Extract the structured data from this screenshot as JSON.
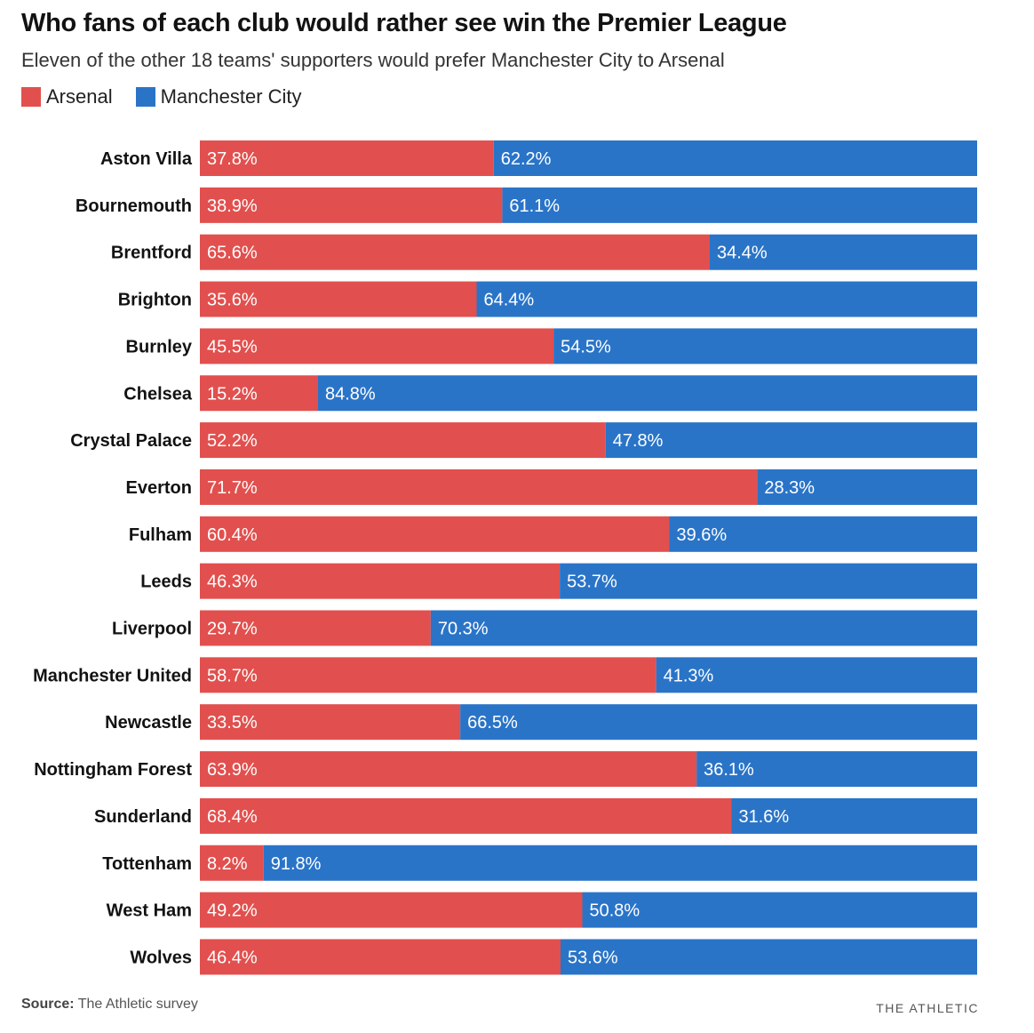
{
  "chart_data": {
    "type": "bar",
    "stacked": true,
    "orientation": "horizontal",
    "title": "Who fans of each club would rather see win the Premier League",
    "subtitle": "Eleven of the other 18 teams' supporters would prefer Manchester City to Arsenal",
    "categories": [
      "Aston Villa",
      "Bournemouth",
      "Brentford",
      "Brighton",
      "Burnley",
      "Chelsea",
      "Crystal Palace",
      "Everton",
      "Fulham",
      "Leeds",
      "Liverpool",
      "Manchester United",
      "Newcastle",
      "Nottingham Forest",
      "Sunderland",
      "Tottenham",
      "West Ham",
      "Wolves"
    ],
    "series": [
      {
        "name": "Arsenal",
        "color": "#e1504e",
        "values": [
          37.8,
          38.9,
          65.6,
          35.6,
          45.5,
          15.2,
          52.2,
          71.7,
          60.4,
          46.3,
          29.7,
          58.7,
          33.5,
          63.9,
          68.4,
          8.2,
          49.2,
          46.4
        ]
      },
      {
        "name": "Manchester City",
        "color": "#2a74c8",
        "values": [
          62.2,
          61.1,
          34.4,
          64.4,
          54.5,
          84.8,
          47.8,
          28.3,
          39.6,
          53.7,
          70.3,
          41.3,
          66.5,
          36.1,
          31.6,
          91.8,
          50.8,
          53.6
        ]
      }
    ],
    "xlim": [
      0,
      100
    ],
    "legend": "top-left"
  },
  "footer": {
    "source_label": "Source:",
    "source_text": " The Athletic survey",
    "brand": "THE ATHLETIC"
  }
}
